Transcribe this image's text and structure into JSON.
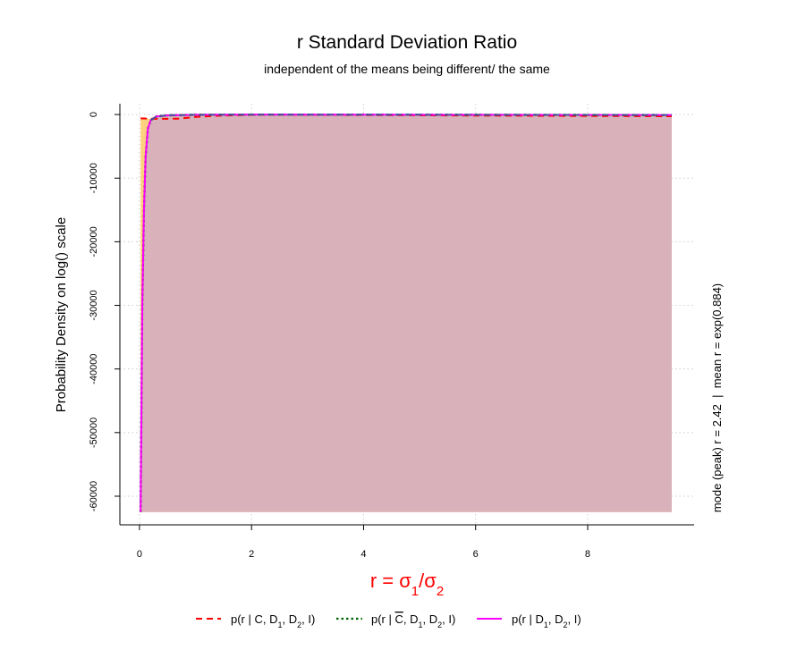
{
  "chart_data": {
    "type": "area",
    "title": "r Standard Deviation Ratio",
    "subtitle": "independent of the means being different/ the same",
    "xlabel": "r = σ₁/σ₂",
    "ylabel": "Probability Density on log() scale",
    "right_annotation": "mode (peak) r = 2.42  |  mean r = exp(0.884)",
    "xlim": [
      -0.35,
      9.9
    ],
    "ylim": [
      -64500,
      1700
    ],
    "x_ticks": [
      0,
      2,
      4,
      6,
      8
    ],
    "y_ticks": [
      0,
      -10000,
      -20000,
      -30000,
      -40000,
      -50000,
      -60000
    ],
    "x_tick_labels": [
      "0",
      "2",
      "4",
      "6",
      "8"
    ],
    "y_tick_labels": [
      "0",
      "-10000",
      "-20000",
      "-30000",
      "-40000",
      "-50000",
      "-60000"
    ],
    "grid": true,
    "legend_position": "bottom",
    "fill_colors": {
      "orange": "#fdd17f",
      "mauve": "#d9b1bb"
    },
    "series": [
      {
        "name": "p(r | C, D1, D2, I)",
        "color": "#ff0000",
        "dash": "dashed",
        "x": [
          0.02,
          0.3,
          0.7,
          1.0,
          1.5,
          2.0,
          2.42,
          3.0,
          4.0,
          5.0,
          6.0,
          7.0,
          8.0,
          9.0,
          9.5
        ],
        "y": [
          -600,
          -680,
          -650,
          -380,
          -150,
          -60,
          -20,
          -40,
          -80,
          -120,
          -160,
          -190,
          -220,
          -250,
          -270
        ]
      },
      {
        "name": "p(r | C̄, D1, D2, I)",
        "color": "#006400",
        "dash": "dotted",
        "x": [
          0.02,
          0.05,
          0.08,
          0.11,
          0.15,
          0.2,
          0.3,
          0.5,
          1.0,
          2.0,
          4.0,
          6.0,
          8.0,
          9.5
        ],
        "y": [
          -62500,
          -30000,
          -15000,
          -6500,
          -2200,
          -900,
          -300,
          -120,
          -40,
          -10,
          -20,
          -40,
          -60,
          -80
        ]
      },
      {
        "name": "p(r | D1, D2, I)",
        "color": "#ff00ff",
        "dash": "solid",
        "x": [
          0.02,
          0.05,
          0.08,
          0.11,
          0.15,
          0.2,
          0.3,
          0.5,
          1.0,
          2.0,
          4.0,
          6.0,
          8.0,
          9.5
        ],
        "y": [
          -62500,
          -30000,
          -15000,
          -6500,
          -2200,
          -900,
          -300,
          -120,
          -40,
          -10,
          -20,
          -40,
          -60,
          -80
        ]
      }
    ],
    "combined_line_color": "#4d4d99"
  }
}
